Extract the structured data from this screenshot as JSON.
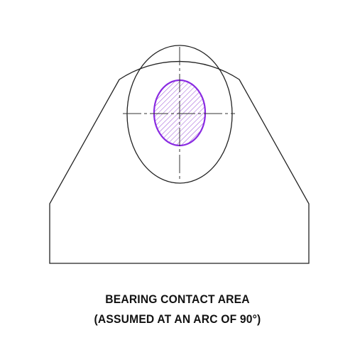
{
  "caption": {
    "line1": "BEARING CONTACT AREA",
    "line2": "(ASSUMED AT AN ARC OF 90°)"
  },
  "colors": {
    "outline": "#222222",
    "centerline": "#333333",
    "contact_hatch": "#9a4fd6",
    "contact_border": "#8a2be2",
    "background": "#ffffff"
  }
}
